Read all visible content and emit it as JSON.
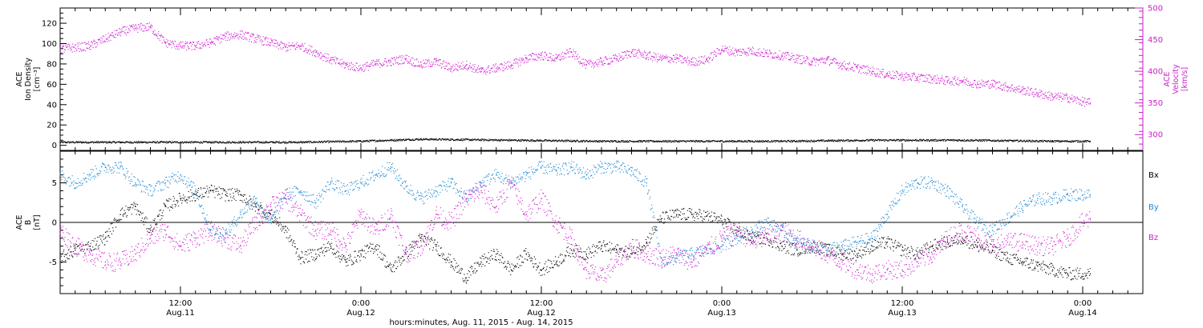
{
  "colors": {
    "black": "#000000",
    "magenta": "#d21ed2",
    "blue": "#1e8ad2",
    "axis_right": "#c81ec8"
  },
  "chart_data": [
    {
      "type": "scatter",
      "panel": "top",
      "ylabel_lines": [
        "ACE",
        "Ion Density",
        "[cm⁻³]"
      ],
      "y2label_lines": [
        "ACE",
        "Velocity",
        "[km/s]"
      ],
      "ylim": [
        -5,
        135
      ],
      "y2lim": [
        275,
        500
      ],
      "yticks": [
        0,
        20,
        40,
        60,
        80,
        100,
        120
      ],
      "y2ticks": [
        300,
        350,
        400,
        450,
        500
      ],
      "xlim_hours": [
        0,
        72
      ],
      "series": [
        {
          "axis": "left",
          "color": "black",
          "x": [
            0,
            4,
            8,
            12,
            16,
            20,
            24,
            30,
            36,
            42,
            48,
            54,
            60,
            66,
            68.5
          ],
          "y": [
            3,
            3,
            3,
            3,
            3,
            4,
            6,
            5,
            4,
            4,
            4,
            5,
            5,
            4,
            4
          ]
        },
        {
          "axis": "right",
          "color": "magenta",
          "x": [
            0,
            2,
            4,
            5,
            6,
            7,
            8,
            9,
            10,
            11,
            12,
            14,
            15,
            16,
            17,
            18,
            19,
            20,
            21,
            22,
            23,
            24,
            25,
            26,
            27,
            28,
            29,
            30,
            31,
            32,
            33,
            34,
            35,
            36,
            37,
            38,
            39,
            40,
            41,
            42,
            43,
            44,
            45,
            46,
            47,
            48,
            49,
            50,
            51,
            52,
            53,
            54,
            55,
            56,
            57,
            58,
            59,
            60,
            61,
            62,
            63,
            64,
            65,
            66,
            67,
            68,
            68.5
          ],
          "y": [
            435,
            440,
            462,
            468,
            470,
            445,
            440,
            440,
            445,
            455,
            458,
            445,
            438,
            440,
            430,
            418,
            410,
            405,
            412,
            415,
            420,
            410,
            415,
            405,
            410,
            400,
            405,
            410,
            420,
            425,
            420,
            430,
            410,
            415,
            420,
            430,
            425,
            420,
            420,
            415,
            418,
            435,
            430,
            432,
            428,
            425,
            420,
            415,
            418,
            410,
            405,
            400,
            395,
            392,
            390,
            388,
            385,
            385,
            380,
            380,
            375,
            370,
            365,
            360,
            358,
            352,
            350
          ]
        }
      ]
    },
    {
      "type": "scatter",
      "panel": "bottom",
      "ylabel_lines": [
        "ACE",
        "B",
        "[nT]"
      ],
      "ylim": [
        -9,
        9
      ],
      "yticks": [
        -5,
        0,
        5
      ],
      "xlim_hours": [
        0,
        72
      ],
      "xtick_labels": [
        {
          "hours": 8,
          "time": "12:00",
          "date": "Aug.11"
        },
        {
          "hours": 20,
          "time": "0:00",
          "date": "Aug.12"
        },
        {
          "hours": 32,
          "time": "12:00",
          "date": "Aug.12"
        },
        {
          "hours": 44,
          "time": "0:00",
          "date": "Aug.13"
        },
        {
          "hours": 56,
          "time": "12:00",
          "date": "Aug.13"
        },
        {
          "hours": 68,
          "time": "0:00",
          "date": "Aug.14"
        }
      ],
      "xlabel": "hours:minutes, Aug. 11, 2015 - Aug. 14, 2015",
      "series": [
        {
          "name": "Bx",
          "color": "black",
          "x": [
            0,
            1,
            2,
            3,
            4,
            5,
            6,
            7,
            8,
            9,
            10,
            11,
            12,
            13,
            14,
            15,
            16,
            17,
            18,
            19,
            20,
            21,
            22,
            23,
            24,
            25,
            26,
            27,
            28,
            29,
            30,
            31,
            32,
            33,
            34,
            35,
            36,
            37,
            38,
            39,
            40,
            41,
            42,
            43,
            44,
            45,
            46,
            47,
            48,
            49,
            50,
            51,
            52,
            53,
            54,
            55,
            56,
            57,
            58,
            59,
            60,
            61,
            62,
            63,
            64,
            65,
            66,
            67,
            68,
            68.5
          ],
          "y": [
            -4.5,
            -3.5,
            -3,
            -2,
            1,
            2,
            -1,
            2,
            3,
            3.5,
            4,
            3.5,
            3.5,
            2,
            1,
            -1,
            -4.5,
            -4,
            -3,
            -5,
            -4,
            -3,
            -6,
            -4,
            -2,
            -3,
            -5,
            -7,
            -5,
            -4,
            -6,
            -4,
            -6,
            -5,
            -3.5,
            -4,
            -3,
            -3.5,
            -4,
            -2.5,
            0.5,
            1,
            1,
            0.8,
            0.2,
            -1,
            -2,
            -2,
            -3,
            -3.5,
            -3,
            -3.5,
            -4,
            -4,
            -3,
            -2.5,
            -3.5,
            -4,
            -3,
            -2.5,
            -2,
            -3,
            -3.5,
            -4.5,
            -5,
            -5.5,
            -6,
            -6.5,
            -6.5,
            -6.5
          ]
        },
        {
          "name": "By",
          "color": "blue",
          "x": [
            0,
            1,
            2,
            3,
            4,
            5,
            6,
            7,
            8,
            9,
            10,
            11,
            12,
            13,
            14,
            15,
            16,
            17,
            18,
            19,
            20,
            21,
            22,
            23,
            24,
            25,
            26,
            27,
            28,
            29,
            30,
            31,
            32,
            33,
            34,
            35,
            36,
            37,
            38,
            39,
            40,
            41,
            42,
            43,
            44,
            45,
            46,
            47,
            48,
            49,
            50,
            51,
            52,
            53,
            54,
            55,
            56,
            57,
            58,
            59,
            60,
            61,
            62,
            63,
            64,
            65,
            66,
            67,
            68,
            68.5
          ],
          "y": [
            6,
            5,
            6,
            7,
            7,
            5,
            4,
            5,
            6,
            4,
            -1,
            -1.5,
            1,
            3,
            0,
            3.5,
            4,
            2.5,
            5,
            4,
            5,
            6,
            7,
            4.5,
            3,
            4,
            5,
            3,
            5,
            6,
            5,
            6,
            7,
            6.5,
            7,
            6,
            7,
            7,
            6.5,
            5,
            -5,
            -4.5,
            -4,
            -3.5,
            -3,
            -2,
            -1,
            0,
            -1,
            -2.5,
            -3,
            -3.5,
            -3,
            -2.5,
            -2,
            1,
            4,
            5,
            5,
            4,
            2,
            0,
            -1,
            0.5,
            2,
            3,
            3,
            3.5,
            3.5,
            3.5
          ]
        },
        {
          "name": "Bz",
          "color": "magenta",
          "x": [
            0,
            1,
            2,
            3,
            4,
            5,
            6,
            7,
            8,
            9,
            10,
            11,
            12,
            13,
            14,
            15,
            16,
            17,
            18,
            19,
            20,
            21,
            22,
            23,
            24,
            25,
            26,
            27,
            28,
            29,
            30,
            31,
            32,
            33,
            34,
            35,
            36,
            37,
            38,
            39,
            40,
            41,
            42,
            43,
            44,
            45,
            46,
            47,
            48,
            49,
            50,
            51,
            52,
            53,
            54,
            55,
            56,
            57,
            58,
            59,
            60,
            61,
            62,
            63,
            64,
            65,
            66,
            67,
            68,
            68.5
          ],
          "y": [
            -1,
            -3,
            -4,
            -5,
            -5,
            -4,
            -2,
            -1,
            -3,
            -2,
            -1,
            -2,
            -3,
            0,
            2,
            3,
            1,
            -1,
            -1,
            -3,
            1,
            -1,
            1,
            -4,
            -3,
            1,
            0,
            3,
            4,
            2,
            5,
            1,
            3,
            0,
            -2,
            -6,
            -7,
            -5,
            -3,
            -4,
            -4.5,
            -4,
            -5,
            -3.5,
            -2,
            -1,
            -2.5,
            -2,
            -1,
            -2,
            -3,
            -4,
            -5,
            -6,
            -6.5,
            -6,
            -6,
            -5,
            -4,
            -2,
            -1,
            -2,
            -3,
            -2.5,
            -2.5,
            -3,
            -3,
            -2,
            0,
            0.5
          ]
        }
      ]
    }
  ]
}
